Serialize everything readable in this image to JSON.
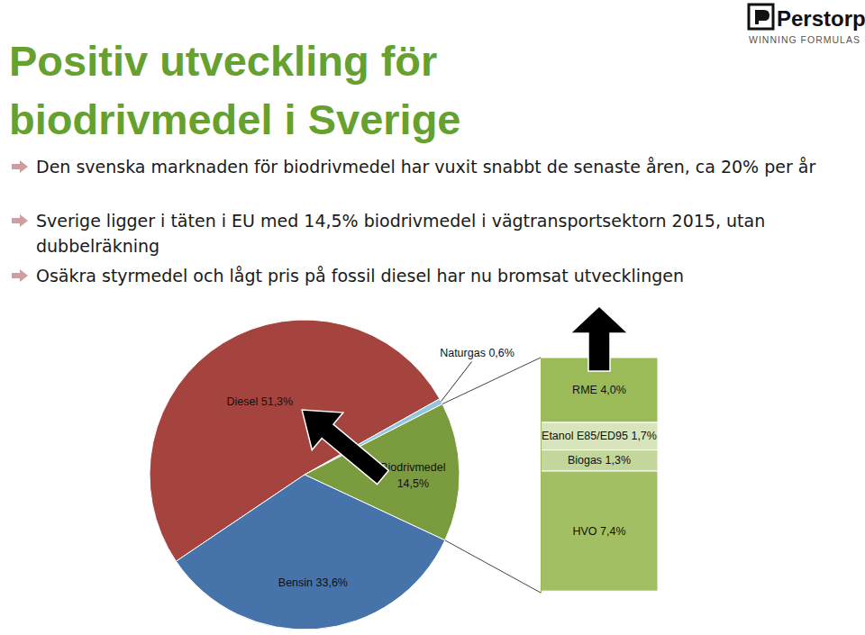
{
  "slide": {
    "title": "Positiv utveckling för biodrivmedel i Sverige",
    "bullets": [
      "Den svenska marknaden för biodrivmedel har vuxit snabbt de senaste åren, ca 20% per år",
      "Sverige ligger i täten i EU med 14,5% biodrivmedel i vägtransportsektorn 2015, utan dubbelräkning",
      "Osäkra styrmedel och lågt pris på fossil diesel har nu bromsat utvecklingen"
    ],
    "logo": {
      "name": "Perstorp",
      "tagline": "WINNING FORMULAS"
    }
  },
  "chart_data": [
    {
      "type": "pie",
      "categories": [
        "Diesel",
        "Naturgas",
        "Biodrivmedel",
        "Bensin"
      ],
      "values": [
        51.3,
        0.6,
        14.5,
        33.6
      ],
      "value_labels": [
        "51,3%",
        "0,6%",
        "14,5%",
        "33,6%"
      ],
      "colors": [
        "#a5443f",
        "#92c6dd",
        "#7b9b3f",
        "#4673a9"
      ],
      "data_labels": true
    },
    {
      "type": "bar",
      "stacked": true,
      "tick_labels": false,
      "data_labels": true,
      "ylim": [
        0,
        14.5
      ],
      "series": [
        {
          "name": "RME",
          "color": "#9bbb59",
          "values": [
            4.0
          ],
          "value_labels": [
            "4,0%"
          ]
        },
        {
          "name": "Etanol E85/ED95",
          "color": "#d8e4bc",
          "values": [
            1.7
          ],
          "value_labels": [
            "1,7%"
          ]
        },
        {
          "name": "Biogas",
          "color": "#c3d69b",
          "values": [
            1.3
          ],
          "value_labels": [
            "1,3%"
          ]
        },
        {
          "name": "HVO",
          "color": "#a2c063",
          "values": [
            7.4
          ],
          "value_labels": [
            "7,4%"
          ]
        }
      ]
    }
  ]
}
